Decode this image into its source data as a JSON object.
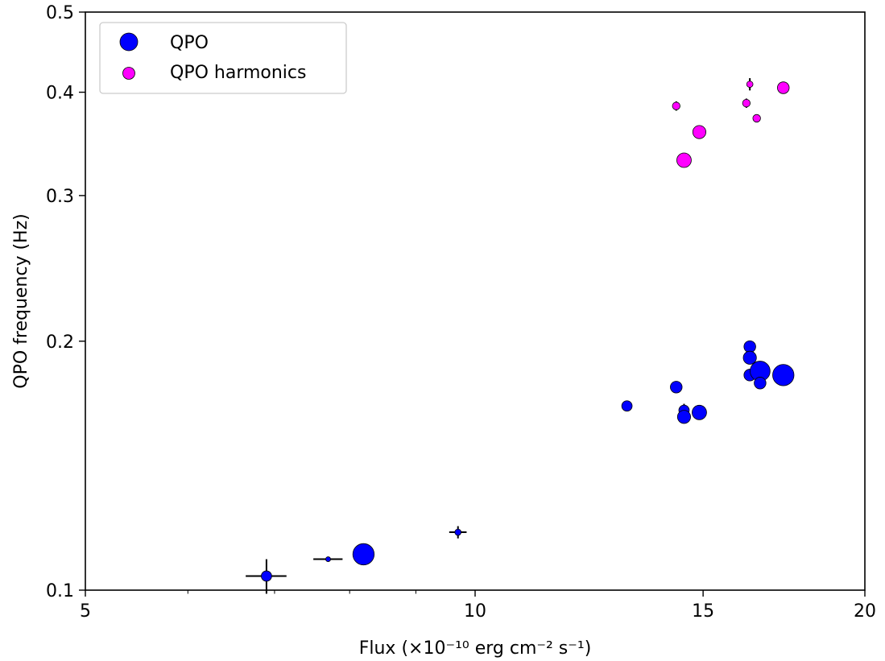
{
  "chart_data": {
    "type": "scatter",
    "title": "",
    "xlabel": "Flux (×10⁻¹⁰ erg cm⁻² s⁻¹)",
    "ylabel": "QPO frequency (Hz)",
    "xscale": "log",
    "yscale": "log",
    "xlim": [
      5,
      20
    ],
    "ylim": [
      0.1,
      0.5
    ],
    "xticks": [
      5,
      10,
      15,
      20
    ],
    "xticklabels": [
      "5",
      "10",
      "15",
      "20"
    ],
    "yticks": [
      0.1,
      0.2,
      0.3,
      0.4,
      0.5
    ],
    "yticklabels": [
      "0.1",
      "0.2",
      "0.3",
      "0.4",
      "0.5"
    ],
    "grid": false,
    "legend_position": "upper left",
    "colors": {
      "qpo": "#0000ff",
      "harmonics": "#ff00ff"
    },
    "series": [
      {
        "name": "QPO",
        "color": "#0000ff",
        "points": [
          {
            "x": 6.9,
            "y": 0.104,
            "xerr": 0.25,
            "yerr": 0.005,
            "size": 7
          },
          {
            "x": 7.7,
            "y": 0.109,
            "xerr": 0.2,
            "yerr": 0.0,
            "size": 3
          },
          {
            "x": 8.2,
            "y": 0.1105,
            "xerr": 0.0,
            "yerr": 0.0,
            "size": 15
          },
          {
            "x": 9.7,
            "y": 0.1175,
            "xerr": 0.15,
            "yerr": 0.002,
            "size": 4
          },
          {
            "x": 13.1,
            "y": 0.167,
            "xerr": 0.1,
            "yerr": 0.0,
            "size": 7
          },
          {
            "x": 14.3,
            "y": 0.176,
            "xerr": 0.0,
            "yerr": 0.0,
            "size": 8
          },
          {
            "x": 14.5,
            "y": 0.165,
            "xerr": 0.0,
            "yerr": 0.003,
            "size": 7
          },
          {
            "x": 14.5,
            "y": 0.162,
            "xerr": 0.0,
            "yerr": 0.0,
            "size": 9
          },
          {
            "x": 14.9,
            "y": 0.164,
            "xerr": 0.0,
            "yerr": 0.0,
            "size": 10
          },
          {
            "x": 16.3,
            "y": 0.197,
            "xerr": 0.0,
            "yerr": 0.0,
            "size": 8
          },
          {
            "x": 16.3,
            "y": 0.191,
            "xerr": 0.0,
            "yerr": 0.0,
            "size": 9
          },
          {
            "x": 16.3,
            "y": 0.182,
            "xerr": 0.0,
            "yerr": 0.0,
            "size": 8
          },
          {
            "x": 16.6,
            "y": 0.184,
            "xerr": 0.0,
            "yerr": 0.0,
            "size": 14
          },
          {
            "x": 16.6,
            "y": 0.178,
            "xerr": 0.0,
            "yerr": 0.0,
            "size": 8
          },
          {
            "x": 17.3,
            "y": 0.182,
            "xerr": 0.0,
            "yerr": 0.0,
            "size": 15
          }
        ]
      },
      {
        "name": "QPO harmonics",
        "color": "#ff00ff",
        "points": [
          {
            "x": 14.3,
            "y": 0.385,
            "xerr": 0.0,
            "yerr": 0.005,
            "size": 5
          },
          {
            "x": 14.5,
            "y": 0.331,
            "xerr": 0.0,
            "yerr": 0.0,
            "size": 10
          },
          {
            "x": 14.9,
            "y": 0.358,
            "xerr": 0.0,
            "yerr": 0.0,
            "size": 9
          },
          {
            "x": 16.2,
            "y": 0.388,
            "xerr": 0.0,
            "yerr": 0.005,
            "size": 5
          },
          {
            "x": 16.3,
            "y": 0.409,
            "xerr": 0.0,
            "yerr": 0.007,
            "size": 4
          },
          {
            "x": 16.5,
            "y": 0.372,
            "xerr": 0.0,
            "yerr": 0.0,
            "size": 5
          },
          {
            "x": 17.3,
            "y": 0.405,
            "xerr": 0.0,
            "yerr": 0.0,
            "size": 8
          }
        ]
      }
    ]
  }
}
